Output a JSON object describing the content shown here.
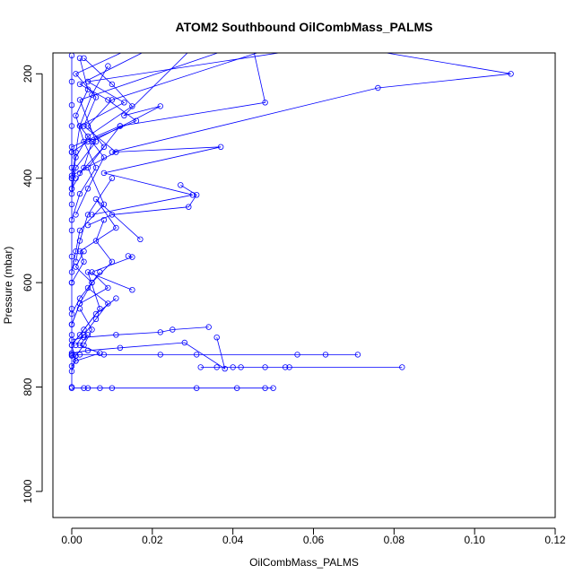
{
  "chart_data": {
    "type": "line",
    "title": "ATOM2 Southbound OilCombMass_PALMS",
    "xlabel": "OilCombMass_PALMS",
    "ylabel": "Pressure (mbar)",
    "xlim": [
      0,
      0.12
    ],
    "ylim": [
      1050,
      160
    ],
    "y_reversed": true,
    "x_ticks": [
      "0.00",
      "0.02",
      "0.04",
      "0.06",
      "0.08",
      "0.10",
      "0.12"
    ],
    "y_ticks": [
      "200",
      "400",
      "600",
      "800",
      "1000"
    ],
    "series_color": "#0000ff",
    "series": [
      {
        "x": [
          0.065,
          0.109,
          0.076,
          0.01,
          0.037,
          0.008,
          0.03,
          0.005
        ],
        "y": [
          143,
          200,
          227,
          350,
          340,
          390,
          432,
          470
        ]
      },
      {
        "x": [
          0.045,
          0.048,
          0.012,
          0.0,
          0.0,
          0.001
        ],
        "y": [
          150,
          255,
          300,
          340,
          380,
          400
        ]
      },
      {
        "x": [
          0.03,
          0.013,
          0.022,
          0.005,
          0.003,
          0.0
        ],
        "y": [
          150,
          280,
          262,
          330,
          380,
          420
        ]
      },
      {
        "x": [
          0.02,
          0.002,
          0.009,
          0.016,
          0.004,
          0.0
        ],
        "y": [
          150,
          220,
          250,
          290,
          330,
          350
        ]
      },
      {
        "x": [
          0.015,
          0.001,
          0.006,
          0.003,
          0.011,
          0.0
        ],
        "y": [
          150,
          200,
          245,
          300,
          350,
          395
        ]
      },
      {
        "x": [
          0.06,
          0.004,
          0.013,
          0.002,
          0.001,
          0.0
        ],
        "y": [
          150,
          215,
          255,
          300,
          350,
          400
        ]
      },
      {
        "x": [
          0.0,
          0.0,
          0.0,
          0.0,
          0.0,
          0.0,
          0.0,
          0.0,
          0.0,
          0.0,
          0.0,
          0.0,
          0.0,
          0.0
        ],
        "y": [
          165,
          215,
          260,
          300,
          350,
          400,
          450,
          500,
          550,
          600,
          650,
          700,
          740,
          800
        ]
      },
      {
        "x": [
          0.002,
          0.004,
          0.001,
          0.003,
          0.006,
          0.002,
          0.0
        ],
        "y": [
          170,
          230,
          280,
          330,
          380,
          430,
          480
        ]
      },
      {
        "x": [
          0.009,
          0.005,
          0.002,
          0.008,
          0.004,
          0.001
        ],
        "y": [
          185,
          240,
          300,
          360,
          420,
          470
        ]
      },
      {
        "x": [
          0.003,
          0.01,
          0.015,
          0.004,
          0.001,
          0.0
        ],
        "y": [
          170,
          220,
          262,
          320,
          360,
          420
        ]
      },
      {
        "x": [
          0.027,
          0.031,
          0.029,
          0.01,
          0.004
        ],
        "y": [
          413,
          432,
          455,
          470,
          490
        ]
      },
      {
        "x": [
          0.012,
          0.004,
          0.008,
          0.002,
          0.001,
          0.0
        ],
        "y": [
          300,
          380,
          450,
          500,
          540,
          580
        ]
      },
      {
        "x": [
          0.017,
          0.006,
          0.011,
          0.002,
          0.003,
          0.0
        ],
        "y": [
          517,
          440,
          495,
          540,
          560,
          600
        ]
      },
      {
        "x": [
          0.014,
          0.015,
          0.005,
          0.009,
          0.002,
          0.0
        ],
        "y": [
          549,
          551,
          580,
          610,
          640,
          680
        ]
      },
      {
        "x": [
          0.015,
          0.004,
          0.007,
          0.002,
          0.0
        ],
        "y": [
          614,
          580,
          650,
          700,
          720
        ]
      },
      {
        "x": [
          0.011,
          0.006,
          0.003,
          0.0,
          0.001
        ],
        "y": [
          630,
          660,
          690,
          720,
          750
        ]
      },
      {
        "x": [
          0.034,
          0.025,
          0.022,
          0.011,
          0.003,
          0.0
        ],
        "y": [
          685,
          690,
          695,
          700,
          705,
          710
        ]
      },
      {
        "x": [
          0.036,
          0.038,
          0.028,
          0.012,
          0.004,
          0.0
        ],
        "y": [
          705,
          765,
          715,
          725,
          730,
          735
        ]
      },
      {
        "x": [
          0.0,
          0.002,
          0.008,
          0.022,
          0.031,
          0.056,
          0.063,
          0.071,
          0.0
        ],
        "y": [
          738,
          738,
          738,
          738,
          738,
          738,
          738,
          738,
          738
        ]
      },
      {
        "x": [
          0.032,
          0.04,
          0.042,
          0.048,
          0.053,
          0.054,
          0.082,
          0.036
        ],
        "y": [
          762,
          762,
          762,
          762,
          762,
          762,
          762,
          762
        ]
      },
      {
        "x": [
          0.0,
          0.003,
          0.004,
          0.007,
          0.01,
          0.031,
          0.041,
          0.048,
          0.05
        ],
        "y": [
          802,
          802,
          802,
          802,
          802,
          802,
          802,
          802,
          802
        ]
      },
      {
        "x": [
          0.002,
          0.005,
          0.003,
          0.001,
          0.0
        ],
        "y": [
          650,
          690,
          720,
          740,
          770
        ]
      },
      {
        "x": [
          0.004,
          0.002,
          0.007,
          0.001,
          0.0
        ],
        "y": [
          700,
          720,
          735,
          750,
          760
        ]
      },
      {
        "x": [
          0.01,
          0.004,
          0.002,
          0.001
        ],
        "y": [
          400,
          470,
          520,
          560
        ]
      },
      {
        "x": [
          0.008,
          0.006,
          0.01,
          0.005,
          0.002,
          0.0
        ],
        "y": [
          480,
          520,
          560,
          600,
          640,
          680
        ]
      },
      {
        "x": [
          0.003,
          0.001,
          0.005,
          0.002,
          0.0
        ],
        "y": [
          540,
          570,
          600,
          630,
          660
        ]
      },
      {
        "x": [
          0.007,
          0.004,
          0.009,
          0.006,
          0.003,
          0.001
        ],
        "y": [
          580,
          610,
          640,
          670,
          700,
          720
        ]
      },
      {
        "x": [
          0.04,
          0.002,
          0.006,
          0.001,
          0.0
        ],
        "y": [
          150,
          250,
          330,
          380,
          430
        ]
      },
      {
        "x": [
          0.05,
          0.01,
          0.004,
          0.008,
          0.002
        ],
        "y": [
          150,
          250,
          300,
          340,
          390
        ]
      }
    ]
  }
}
